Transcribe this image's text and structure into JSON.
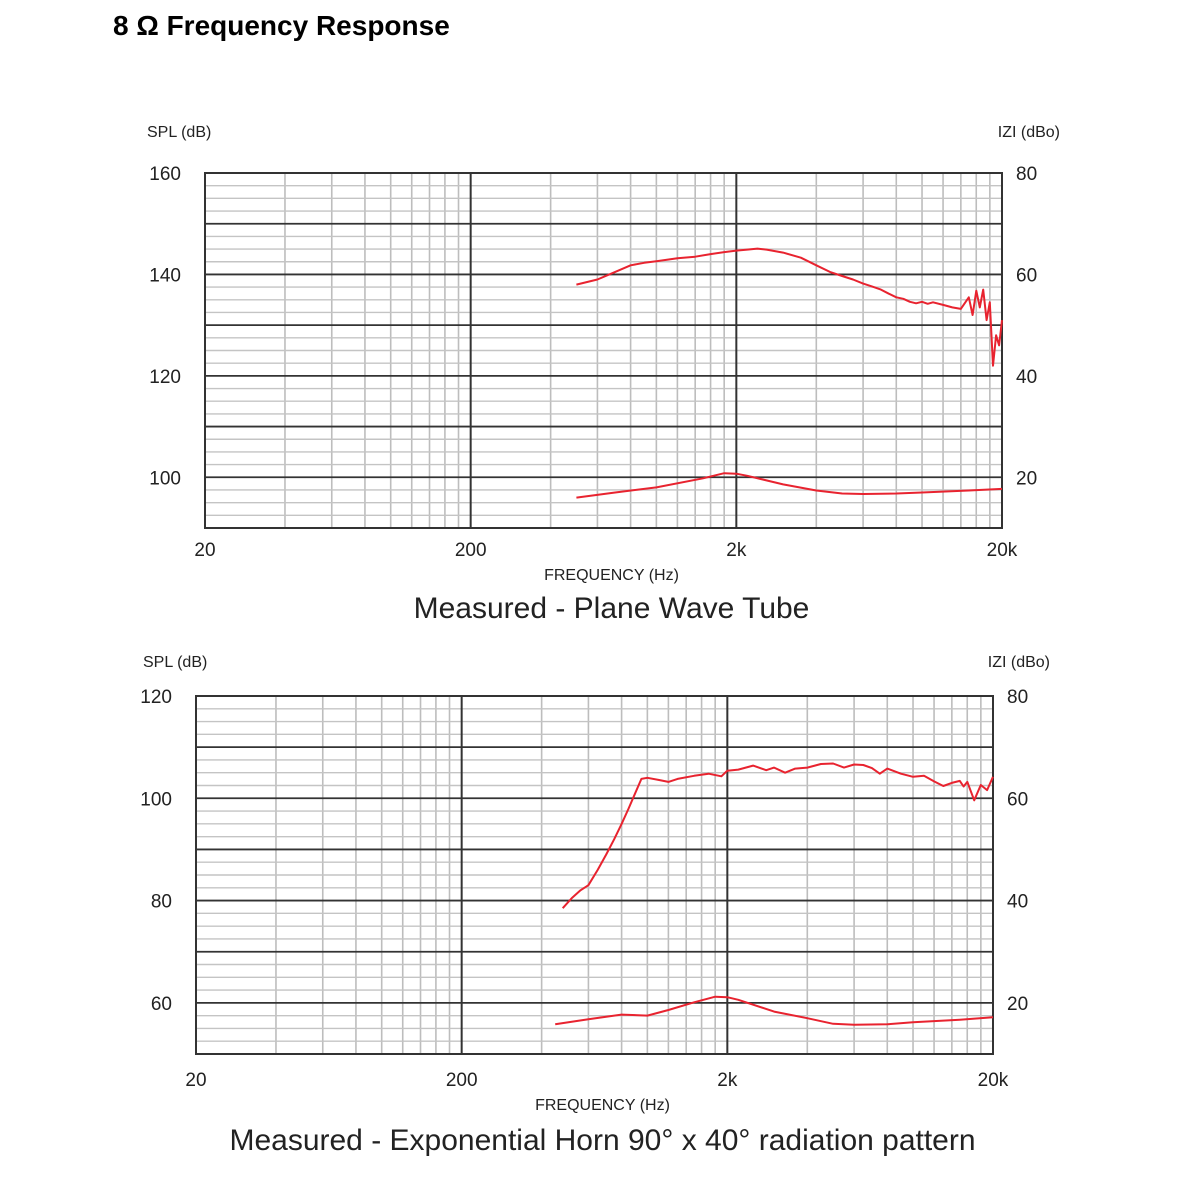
{
  "page": {
    "title": "8 Ω Frequency Response"
  },
  "chart_data": [
    {
      "type": "line",
      "title": "Measured - Plane Wave Tube",
      "xlabel": "FREQUENCY (Hz)",
      "ylabel": "SPL (dB)",
      "ylabel_right": "IZI (dBo)",
      "xscale": "log",
      "xlim": [
        20,
        20000
      ],
      "ylim": [
        90,
        160
      ],
      "ylim_right": [
        10,
        80
      ],
      "x_tick_labels": [
        "20",
        "200",
        "2k",
        "20k"
      ],
      "x_ticks": [
        20,
        200,
        2000,
        20000
      ],
      "y_ticks": [
        100,
        120,
        140,
        160
      ],
      "y_ticks_right": [
        20,
        40,
        60,
        80
      ],
      "grid": true,
      "line_color": "#e8232f",
      "series": [
        {
          "axis": "left",
          "x": [
            500,
            600,
            700,
            800,
            900,
            1000,
            1200,
            1400,
            1600,
            1800,
            2000,
            2200,
            2400,
            2600,
            3000,
            3500,
            4000,
            4500,
            5000,
            5500,
            6000,
            6500,
            7000,
            7500,
            8000,
            8500,
            9000,
            9500,
            10000,
            10500,
            11000,
            12000,
            13000,
            14000,
            15000,
            15500,
            16000,
            16500,
            17000,
            17500,
            18000,
            18500,
            19000,
            19500,
            20000
          ],
          "y": [
            138.0,
            139.0,
            140.5,
            141.8,
            142.3,
            142.6,
            143.2,
            143.5,
            144.0,
            144.4,
            144.7,
            144.9,
            145.1,
            144.9,
            144.3,
            143.3,
            141.8,
            140.5,
            139.7,
            139.0,
            138.2,
            137.6,
            137.0,
            136.2,
            135.5,
            135.2,
            134.6,
            134.3,
            134.6,
            134.2,
            134.5,
            134.0,
            133.5,
            133.2,
            135.5,
            132.0,
            136.8,
            133.5,
            137.0,
            131.0,
            134.5,
            122.0,
            128.0,
            126.0,
            131.0
          ]
        },
        {
          "axis": "right",
          "x": [
            500,
            700,
            1000,
            1500,
            1800,
            2000,
            2200,
            3000,
            4000,
            5000,
            6000,
            8000,
            10000,
            15000,
            20000
          ],
          "y": [
            16.0,
            17.0,
            18.0,
            19.8,
            20.8,
            20.7,
            20.3,
            18.6,
            17.4,
            16.8,
            16.7,
            16.8,
            17.0,
            17.4,
            17.7
          ]
        }
      ]
    },
    {
      "type": "line",
      "title": "Measured - Exponential Horn 90° x 40° radiation pattern",
      "xlabel": "FREQUENCY (Hz)",
      "ylabel": "SPL (dB)",
      "ylabel_right": "IZI (dBo)",
      "xscale": "log",
      "xlim": [
        20,
        20000
      ],
      "ylim": [
        50,
        120
      ],
      "ylim_right": [
        10,
        80
      ],
      "x_tick_labels": [
        "20",
        "200",
        "2k",
        "20k"
      ],
      "x_ticks": [
        20,
        200,
        2000,
        20000
      ],
      "y_ticks": [
        60,
        80,
        100,
        120
      ],
      "y_ticks_right": [
        20,
        40,
        60,
        80
      ],
      "grid": true,
      "line_color": "#e8232f",
      "series": [
        {
          "axis": "left",
          "x": [
            480,
            520,
            560,
            600,
            650,
            700,
            750,
            800,
            850,
            900,
            950,
            1000,
            1100,
            1200,
            1300,
            1500,
            1700,
            1900,
            2000,
            2200,
            2500,
            2800,
            3000,
            3300,
            3600,
            4000,
            4500,
            5000,
            5500,
            6000,
            6500,
            7000,
            7500,
            8000,
            9000,
            10000,
            11000,
            12000,
            13000,
            14000,
            15000,
            15500,
            16000,
            17000,
            18000,
            19000,
            20000
          ],
          "y": [
            78.5,
            80.5,
            82.0,
            83.0,
            86.0,
            89.0,
            92.0,
            95.0,
            98.0,
            101.0,
            103.8,
            104.0,
            103.6,
            103.2,
            103.8,
            104.4,
            104.8,
            104.3,
            105.4,
            105.6,
            106.4,
            105.5,
            106.0,
            105.0,
            105.8,
            106.0,
            106.7,
            106.8,
            106.0,
            106.6,
            106.5,
            105.9,
            104.8,
            105.8,
            104.8,
            104.2,
            104.4,
            103.3,
            102.4,
            103.0,
            103.4,
            102.3,
            103.2,
            99.6,
            102.6,
            101.6,
            104.2
          ]
        },
        {
          "axis": "right",
          "x": [
            450,
            600,
            800,
            1000,
            1200,
            1500,
            1800,
            2000,
            2200,
            3000,
            4000,
            5000,
            6000,
            8000,
            10000,
            15000,
            20000
          ],
          "y": [
            15.8,
            16.8,
            17.7,
            17.5,
            18.6,
            20.1,
            21.2,
            21.1,
            20.6,
            18.3,
            17.0,
            15.9,
            15.7,
            15.8,
            16.2,
            16.7,
            17.2
          ]
        }
      ]
    }
  ]
}
